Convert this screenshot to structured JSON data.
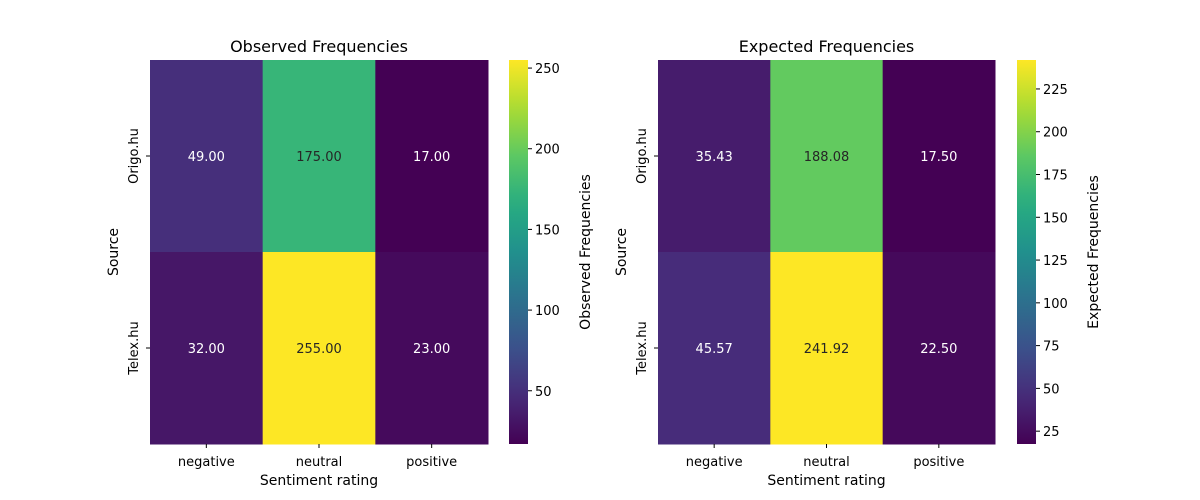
{
  "chart_data": [
    {
      "type": "heatmap",
      "title": "Observed Frequencies",
      "xlabel": "Sentiment rating",
      "ylabel": "Source",
      "x_categories": [
        "negative",
        "neutral",
        "positive"
      ],
      "y_categories": [
        "Origo.hu",
        "Telex.hu"
      ],
      "values": [
        [
          49,
          175,
          17
        ],
        [
          32,
          255,
          23
        ]
      ],
      "annotations": [
        [
          "49.00",
          "175.00",
          "17.00"
        ],
        [
          "32.00",
          "255.00",
          "23.00"
        ]
      ],
      "colormap": "viridis",
      "colorbar": {
        "label": "Observed Frequencies",
        "min": 17,
        "max": 255,
        "ticks": [
          50,
          100,
          150,
          200,
          250
        ],
        "tick_labels": [
          "50",
          "100",
          "150",
          "200",
          "250"
        ]
      }
    },
    {
      "type": "heatmap",
      "title": "Expected Frequencies",
      "xlabel": "Sentiment rating",
      "ylabel": "Source",
      "x_categories": [
        "negative",
        "neutral",
        "positive"
      ],
      "y_categories": [
        "Origo.hu",
        "Telex.hu"
      ],
      "values": [
        [
          35.43,
          188.08,
          17.5
        ],
        [
          45.57,
          241.92,
          22.5
        ]
      ],
      "annotations": [
        [
          "35.43",
          "188.08",
          "17.50"
        ],
        [
          "45.57",
          "241.92",
          "22.50"
        ]
      ],
      "colormap": "viridis",
      "colorbar": {
        "label": "Expected Frequencies",
        "min": 17.5,
        "max": 241.92,
        "ticks": [
          25,
          50,
          75,
          100,
          125,
          150,
          175,
          200,
          225
        ],
        "tick_labels": [
          "25",
          "50",
          "75",
          "100",
          "125",
          "150",
          "175",
          "200",
          "225"
        ]
      }
    }
  ]
}
